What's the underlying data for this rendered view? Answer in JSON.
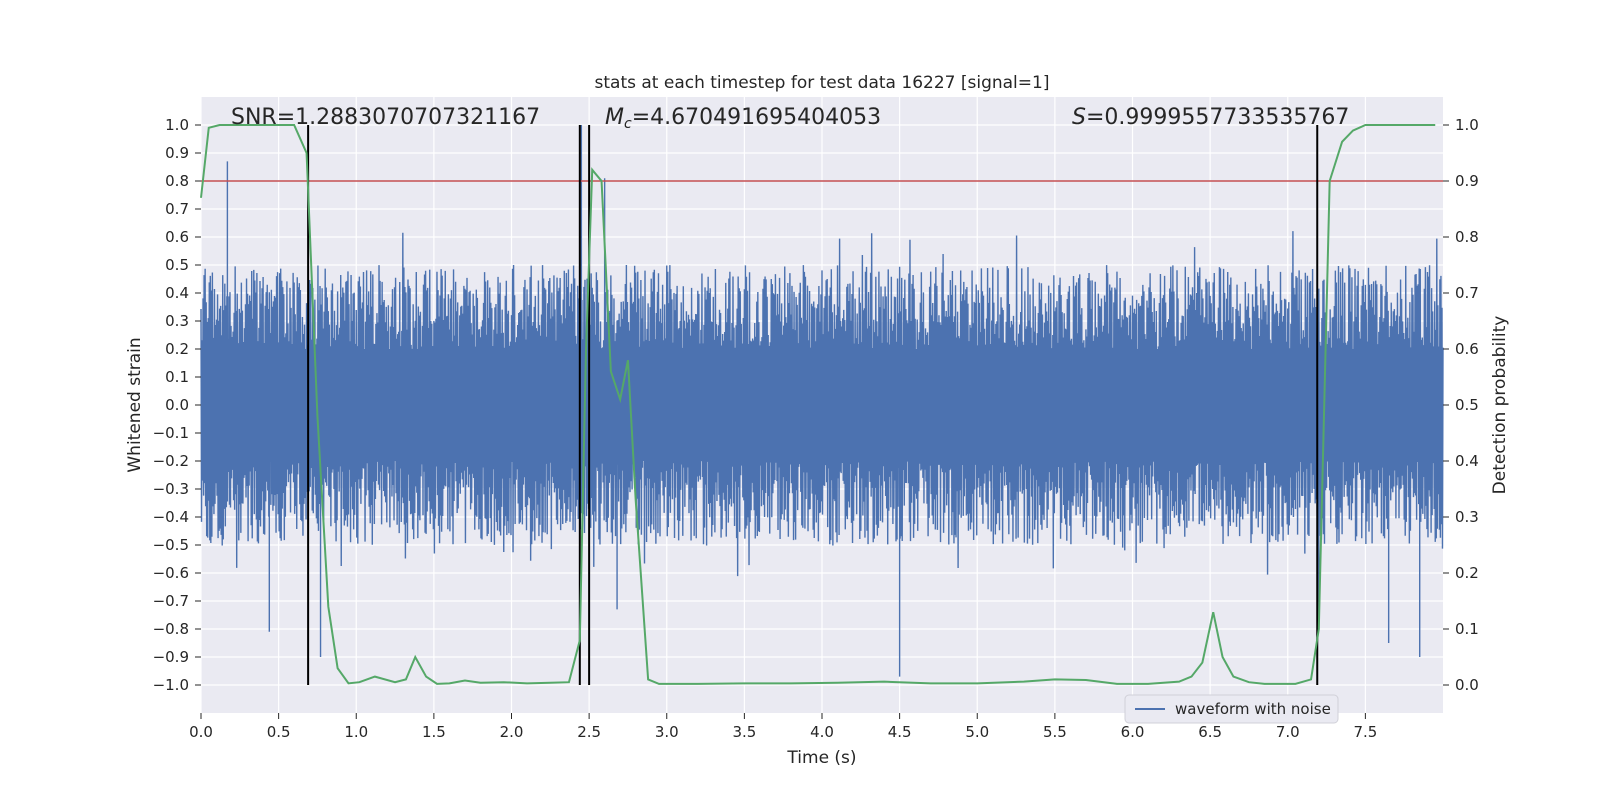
{
  "chart_data": {
    "type": "line",
    "title": "stats at each timestep for test data 16227 [signal=1]",
    "xlabel": "Time (s)",
    "ylabel": "Whitened strain",
    "ylabel_right": "Detection probability",
    "xlim": [
      0.0,
      8.0
    ],
    "ylim": [
      -1.1,
      1.1
    ],
    "ylim_right": [
      -0.05,
      1.05
    ],
    "x_ticks": [
      "0.0",
      "0.5",
      "1.0",
      "1.5",
      "2.0",
      "2.5",
      "3.0",
      "3.5",
      "4.0",
      "4.5",
      "5.0",
      "5.5",
      "6.0",
      "6.5",
      "7.0",
      "7.5"
    ],
    "y_ticks": [
      "1.0",
      "0.9",
      "0.8",
      "0.7",
      "0.6",
      "0.5",
      "0.4",
      "0.3",
      "0.2",
      "0.1",
      "0.0",
      "−0.1",
      "−0.2",
      "−0.3",
      "−0.4",
      "−0.5",
      "−0.6",
      "−0.7",
      "−0.8",
      "−0.9",
      "−1.0"
    ],
    "y_ticks_right": [
      "1.0",
      "0.9",
      "0.8",
      "0.7",
      "0.6",
      "0.5",
      "0.4",
      "0.3",
      "0.2",
      "0.1",
      "0.0"
    ],
    "grid": true,
    "legend": {
      "position": "lower-right",
      "entries": [
        "waveform with noise"
      ]
    },
    "annotations": {
      "snr": "SNR=1.2883070707321167",
      "mc_symbol": "M",
      "mc_sub": "c",
      "mc_value": "=4.670491695404053",
      "s_symbol": "S",
      "s_value": "=0.9999557733535767"
    },
    "threshold_line": {
      "axis": "right",
      "value": 0.9,
      "color": "#c44e52"
    },
    "vertical_lines": [
      0.69,
      2.44,
      2.5,
      7.19
    ],
    "colors": {
      "waveform": "#4c72b0",
      "probability": "#55a868",
      "threshold": "#c44e52",
      "background": "#eaeaf2",
      "marker": "#000000"
    },
    "series": [
      {
        "name": "waveform with noise",
        "style": "dense noise",
        "envelope": {
          "typical_max": 0.5,
          "typical_min": -0.5,
          "dense_band": [
            -0.2,
            0.2
          ]
        },
        "spikes": [
          {
            "x": 0.17,
            "y": 0.87
          },
          {
            "x": 0.44,
            "y": -0.81
          },
          {
            "x": 0.77,
            "y": -0.9
          },
          {
            "x": 2.45,
            "y": 1.0
          },
          {
            "x": 2.6,
            "y": 0.81
          },
          {
            "x": 2.68,
            "y": -0.73
          },
          {
            "x": 4.5,
            "y": -0.97
          },
          {
            "x": 7.2,
            "y": -0.78
          },
          {
            "x": 7.65,
            "y": -0.85
          },
          {
            "x": 7.85,
            "y": -0.9
          }
        ]
      },
      {
        "name": "Detection probability",
        "axis": "right",
        "x": [
          0.0,
          0.05,
          0.12,
          0.6,
          0.68,
          0.75,
          0.82,
          0.88,
          0.95,
          1.02,
          1.12,
          1.25,
          1.32,
          1.38,
          1.45,
          1.52,
          1.6,
          1.7,
          1.8,
          1.95,
          2.1,
          2.25,
          2.37,
          2.44,
          2.48,
          2.52,
          2.58,
          2.64,
          2.7,
          2.75,
          2.8,
          2.88,
          2.95,
          3.2,
          3.5,
          3.8,
          4.1,
          4.4,
          4.7,
          5.0,
          5.3,
          5.5,
          5.7,
          5.9,
          6.1,
          6.3,
          6.38,
          6.45,
          6.52,
          6.58,
          6.65,
          6.75,
          6.85,
          7.05,
          7.15,
          7.2,
          7.27,
          7.35,
          7.42,
          7.5,
          7.65,
          7.95
        ],
        "y": [
          0.87,
          0.995,
          1.0,
          1.0,
          0.95,
          0.48,
          0.14,
          0.03,
          0.003,
          0.005,
          0.015,
          0.005,
          0.01,
          0.05,
          0.015,
          0.002,
          0.003,
          0.008,
          0.004,
          0.005,
          0.003,
          0.004,
          0.005,
          0.08,
          0.6,
          0.92,
          0.9,
          0.56,
          0.51,
          0.58,
          0.33,
          0.01,
          0.002,
          0.002,
          0.003,
          0.003,
          0.004,
          0.006,
          0.003,
          0.003,
          0.006,
          0.01,
          0.009,
          0.002,
          0.002,
          0.006,
          0.015,
          0.04,
          0.13,
          0.05,
          0.015,
          0.005,
          0.002,
          0.002,
          0.01,
          0.1,
          0.9,
          0.97,
          0.99,
          1.0,
          1.0,
          1.0
        ]
      }
    ]
  }
}
